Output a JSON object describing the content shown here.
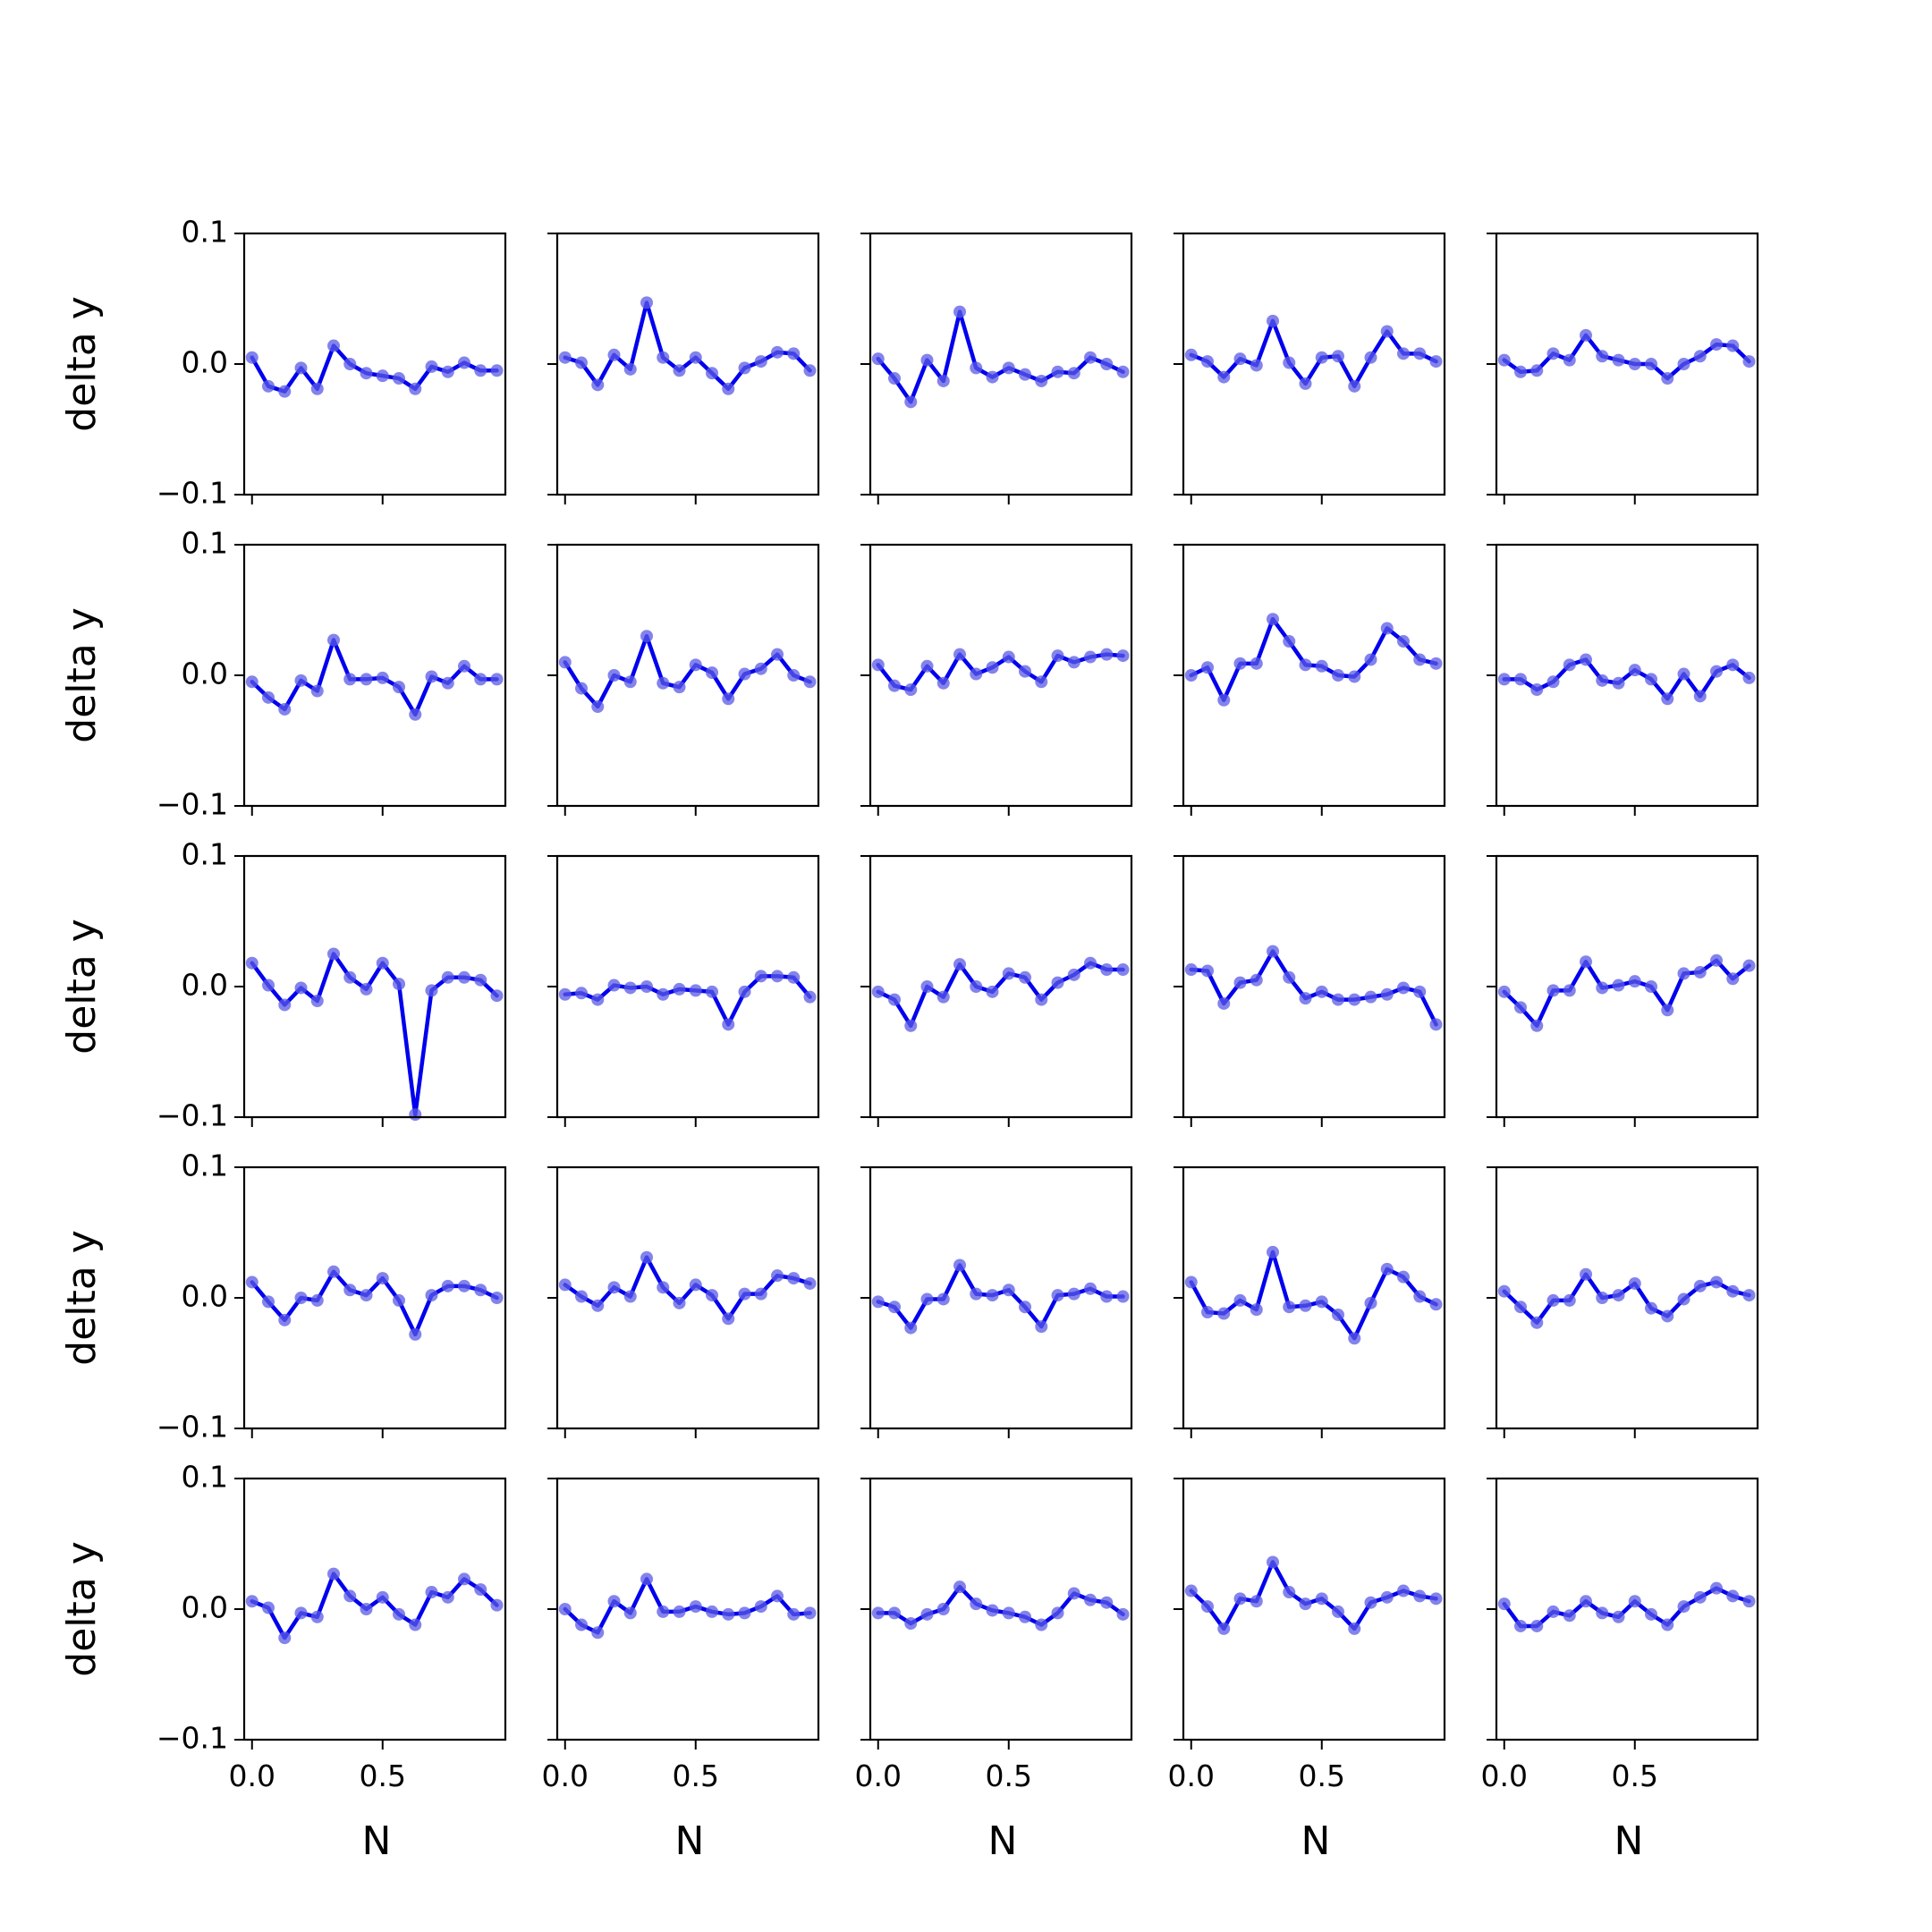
{
  "chart_data": {
    "type": "line",
    "layout": {
      "rows": 5,
      "cols": 5
    },
    "xlabel": "N",
    "ylabel": "delta y",
    "xlim": [
      -0.03,
      0.97
    ],
    "ylim": [
      -0.1,
      0.1
    ],
    "xticks": [
      0.0,
      0.5
    ],
    "xtick_labels": [
      "0.0",
      "0.5"
    ],
    "yticks": [
      0.1,
      0.0,
      -0.1
    ],
    "ytick_labels": [
      "0.1",
      "0.0",
      "−0.1"
    ],
    "line_color": "#0000ee",
    "marker_color": "#5a5ae6",
    "x": [
      0.0,
      0.0625,
      0.125,
      0.1875,
      0.25,
      0.3125,
      0.375,
      0.4375,
      0.5,
      0.5625,
      0.625,
      0.6875,
      0.75,
      0.8125,
      0.875,
      0.9375
    ],
    "panels": [
      [
        0.005,
        -0.017,
        -0.021,
        -0.003,
        -0.019,
        0.014,
        0.0,
        -0.007,
        -0.009,
        -0.011,
        -0.019,
        -0.002,
        -0.006,
        0.001,
        -0.005,
        -0.005
      ],
      [
        0.005,
        0.001,
        -0.016,
        0.007,
        -0.004,
        0.047,
        0.005,
        -0.005,
        0.005,
        -0.007,
        -0.019,
        -0.003,
        0.002,
        0.009,
        0.008,
        -0.005
      ],
      [
        0.004,
        -0.011,
        -0.029,
        0.003,
        -0.013,
        0.04,
        -0.003,
        -0.01,
        -0.003,
        -0.008,
        -0.013,
        -0.006,
        -0.007,
        0.005,
        0.0,
        -0.006
      ],
      [
        0.007,
        0.002,
        -0.01,
        0.004,
        -0.001,
        0.033,
        0.001,
        -0.015,
        0.005,
        0.006,
        -0.017,
        0.005,
        0.025,
        0.008,
        0.008,
        0.002
      ],
      [
        0.003,
        -0.006,
        -0.005,
        0.008,
        0.003,
        0.022,
        0.006,
        0.003,
        0.0,
        0.0,
        -0.011,
        0.0,
        0.006,
        0.015,
        0.014,
        0.002
      ],
      [
        -0.005,
        -0.017,
        -0.026,
        -0.004,
        -0.012,
        0.027,
        -0.003,
        -0.003,
        -0.002,
        -0.009,
        -0.03,
        -0.001,
        -0.006,
        0.007,
        -0.003,
        -0.003
      ],
      [
        0.01,
        -0.01,
        -0.024,
        0.0,
        -0.005,
        0.03,
        -0.006,
        -0.009,
        0.008,
        0.002,
        -0.018,
        0.001,
        0.005,
        0.016,
        0.0,
        -0.005
      ],
      [
        0.008,
        -0.008,
        -0.011,
        0.007,
        -0.006,
        0.016,
        0.001,
        0.006,
        0.014,
        0.003,
        -0.005,
        0.015,
        0.01,
        0.014,
        0.016,
        0.015
      ],
      [
        0.0,
        0.006,
        -0.019,
        0.009,
        0.009,
        0.043,
        0.026,
        0.008,
        0.007,
        0.0,
        -0.001,
        0.012,
        0.036,
        0.026,
        0.012,
        0.009
      ],
      [
        -0.003,
        -0.003,
        -0.011,
        -0.005,
        0.008,
        0.012,
        -0.004,
        -0.006,
        0.004,
        -0.003,
        -0.018,
        0.001,
        -0.016,
        0.003,
        0.008,
        -0.002
      ],
      [
        0.018,
        0.001,
        -0.014,
        -0.001,
        -0.011,
        0.025,
        0.007,
        -0.002,
        0.018,
        0.002,
        -0.098,
        -0.003,
        0.007,
        0.007,
        0.005,
        -0.007
      ],
      [
        -0.006,
        -0.005,
        -0.01,
        0.001,
        -0.001,
        0.0,
        -0.006,
        -0.002,
        -0.003,
        -0.004,
        -0.029,
        -0.004,
        0.008,
        0.008,
        0.007,
        -0.008
      ],
      [
        -0.004,
        -0.01,
        -0.03,
        0.0,
        -0.008,
        0.017,
        0.0,
        -0.004,
        0.01,
        0.007,
        -0.01,
        0.003,
        0.009,
        0.018,
        0.013,
        0.013
      ],
      [
        0.013,
        0.012,
        -0.013,
        0.003,
        0.005,
        0.027,
        0.007,
        -0.009,
        -0.004,
        -0.01,
        -0.01,
        -0.008,
        -0.006,
        -0.001,
        -0.004,
        -0.029
      ],
      [
        -0.004,
        -0.016,
        -0.03,
        -0.003,
        -0.003,
        0.019,
        -0.001,
        0.001,
        0.004,
        0.0,
        -0.018,
        0.01,
        0.011,
        0.02,
        0.006,
        0.016
      ],
      [
        0.012,
        -0.003,
        -0.017,
        0.0,
        -0.002,
        0.02,
        0.006,
        0.002,
        0.015,
        -0.002,
        -0.028,
        0.002,
        0.009,
        0.009,
        0.006,
        0.0
      ],
      [
        0.01,
        0.001,
        -0.006,
        0.008,
        0.001,
        0.031,
        0.008,
        -0.004,
        0.01,
        0.002,
        -0.016,
        0.003,
        0.003,
        0.017,
        0.015,
        0.011
      ],
      [
        -0.003,
        -0.007,
        -0.023,
        -0.001,
        -0.001,
        0.025,
        0.003,
        0.002,
        0.006,
        -0.007,
        -0.022,
        0.002,
        0.003,
        0.007,
        0.001,
        0.001
      ],
      [
        0.012,
        -0.011,
        -0.012,
        -0.002,
        -0.009,
        0.035,
        -0.007,
        -0.006,
        -0.003,
        -0.013,
        -0.031,
        -0.004,
        0.022,
        0.016,
        0.001,
        -0.005
      ],
      [
        0.005,
        -0.007,
        -0.019,
        -0.002,
        -0.002,
        0.018,
        0.0,
        0.002,
        0.011,
        -0.008,
        -0.014,
        -0.001,
        0.009,
        0.012,
        0.005,
        0.002
      ],
      [
        0.006,
        0.001,
        -0.022,
        -0.003,
        -0.006,
        0.027,
        0.01,
        0.0,
        0.009,
        -0.004,
        -0.012,
        0.013,
        0.009,
        0.023,
        0.015,
        0.003
      ],
      [
        0.0,
        -0.012,
        -0.018,
        0.006,
        -0.003,
        0.023,
        -0.002,
        -0.002,
        0.002,
        -0.002,
        -0.004,
        -0.003,
        0.002,
        0.01,
        -0.004,
        -0.003
      ],
      [
        -0.003,
        -0.003,
        -0.011,
        -0.004,
        0.0,
        0.017,
        0.004,
        -0.001,
        -0.003,
        -0.006,
        -0.012,
        -0.003,
        0.012,
        0.007,
        0.005,
        -0.004
      ],
      [
        0.014,
        0.002,
        -0.015,
        0.008,
        0.006,
        0.036,
        0.013,
        0.004,
        0.008,
        -0.002,
        -0.015,
        0.005,
        0.009,
        0.014,
        0.01,
        0.008
      ],
      [
        0.004,
        -0.013,
        -0.013,
        -0.002,
        -0.005,
        0.006,
        -0.003,
        -0.006,
        0.006,
        -0.004,
        -0.012,
        0.002,
        0.009,
        0.016,
        0.01,
        0.006
      ]
    ]
  }
}
